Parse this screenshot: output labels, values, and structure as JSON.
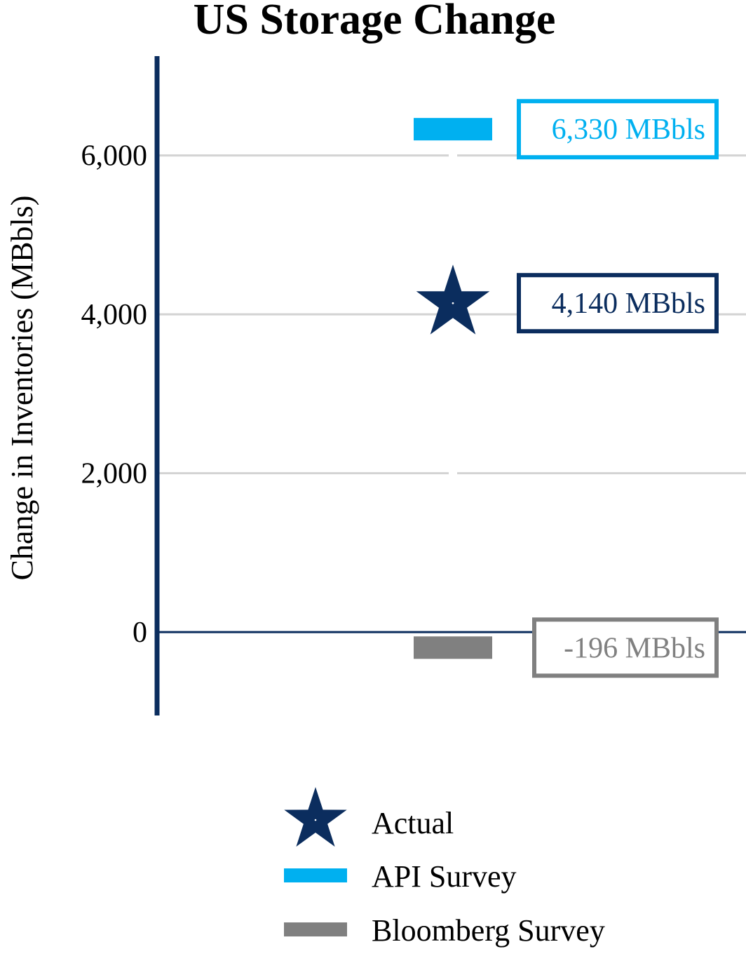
{
  "chart_data": {
    "type": "scatter",
    "title": "US Storage Change",
    "xlabel": "",
    "ylabel": "Change in Inventories (MBbls)",
    "ylim": [
      -1050,
      7250
    ],
    "yticks": [
      0,
      2000,
      4000,
      6000
    ],
    "ytick_labels": [
      "0",
      "2,000",
      "4,000",
      "6,000"
    ],
    "grid": true,
    "legend_position": "bottom-center",
    "series": [
      {
        "name": "Actual",
        "marker": "star",
        "color": "#0b2d5e",
        "value": 4140,
        "label": "4,140 MBbls"
      },
      {
        "name": "API Survey",
        "marker": "bar",
        "color": "#00b0f0",
        "value": 6330,
        "label": "6,330 MBbls"
      },
      {
        "name": "Bloomberg Survey",
        "marker": "bar",
        "color": "#808080",
        "value": -196,
        "label": "-196 MBbls"
      }
    ],
    "colors": {
      "axis": "#0b2d5e",
      "grid": "#d3d3d3"
    }
  }
}
